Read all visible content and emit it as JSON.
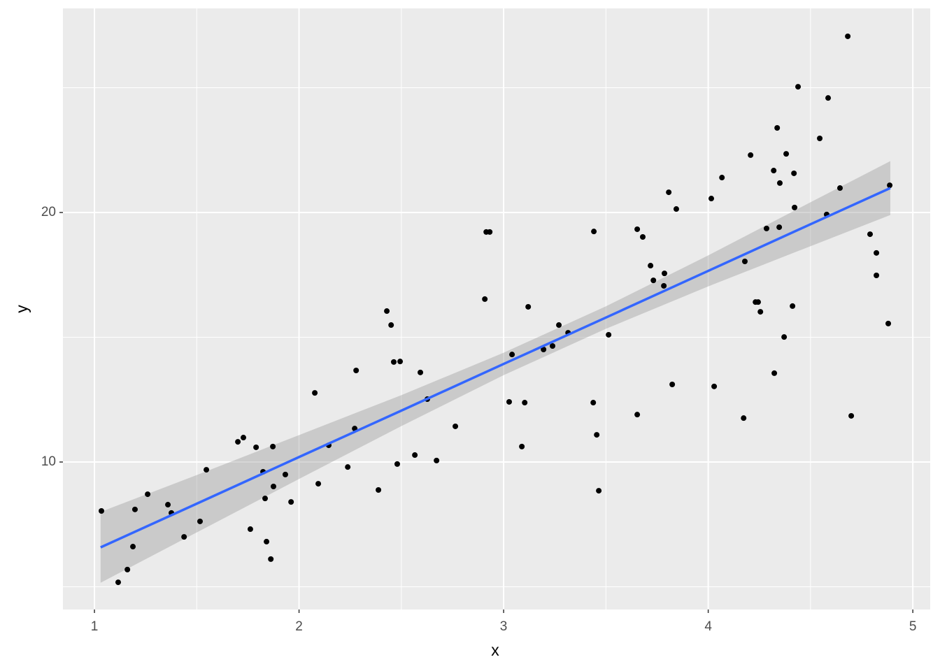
{
  "chart_data": {
    "type": "scatter",
    "x_label": "x",
    "y_label": "y",
    "xlim": [
      0.846,
      5.085
    ],
    "ylim": [
      4.09,
      28.18
    ],
    "xticks": [
      1,
      2,
      3,
      4,
      5
    ],
    "yticks": [
      10,
      20
    ],
    "minor_xticks": [
      1.5,
      2.5,
      3.5,
      4.5
    ],
    "minor_yticks": [
      5,
      15,
      25
    ],
    "grid": true,
    "color": "#000000",
    "x": [
      1.034,
      1.116,
      1.161,
      1.188,
      1.198,
      1.26,
      1.359,
      1.376,
      1.438,
      1.516,
      1.547,
      1.701,
      1.728,
      1.762,
      1.79,
      1.824,
      1.834,
      1.841,
      1.862,
      1.872,
      1.875,
      1.933,
      1.961,
      2.077,
      2.094,
      2.145,
      2.238,
      2.272,
      2.279,
      2.388,
      2.429,
      2.45,
      2.463,
      2.48,
      2.494,
      2.566,
      2.593,
      2.627,
      2.672,
      2.764,
      2.908,
      2.915,
      2.932,
      3.027,
      3.041,
      3.089,
      3.103,
      3.12,
      3.195,
      3.239,
      3.27,
      3.315,
      3.438,
      3.441,
      3.455,
      3.465,
      3.513,
      3.653,
      3.653,
      3.68,
      3.718,
      3.732,
      3.783,
      3.786,
      3.807,
      3.824,
      3.844,
      4.015,
      4.029,
      4.067,
      4.173,
      4.179,
      4.207,
      4.231,
      4.244,
      4.255,
      4.285,
      4.32,
      4.323,
      4.337,
      4.35,
      4.347,
      4.371,
      4.381,
      4.412,
      4.419,
      4.422,
      4.439,
      4.545,
      4.579,
      4.586,
      4.644,
      4.682,
      4.699,
      4.791,
      4.822,
      4.822,
      4.88,
      4.887
    ],
    "values": [
      8.04,
      5.18,
      5.69,
      6.61,
      8.1,
      8.71,
      8.29,
      7.96,
      7.0,
      7.62,
      9.69,
      10.81,
      10.98,
      7.31,
      10.59,
      9.61,
      8.54,
      6.81,
      6.11,
      10.62,
      9.02,
      9.5,
      8.4,
      12.77,
      9.13,
      10.67,
      9.8,
      11.34,
      13.67,
      8.88,
      16.05,
      15.49,
      14.01,
      9.92,
      14.03,
      10.28,
      13.59,
      12.52,
      10.06,
      11.43,
      16.53,
      19.22,
      19.22,
      12.41,
      14.31,
      10.62,
      12.38,
      16.22,
      14.51,
      14.65,
      15.49,
      15.18,
      12.38,
      19.24,
      11.09,
      8.85,
      15.1,
      11.9,
      19.33,
      19.02,
      17.87,
      17.28,
      17.06,
      17.56,
      20.81,
      13.11,
      20.14,
      20.56,
      13.03,
      21.4,
      11.76,
      18.04,
      22.3,
      16.41,
      16.41,
      16.02,
      19.36,
      21.68,
      13.56,
      23.39,
      21.18,
      19.41,
      15.01,
      22.35,
      16.25,
      21.57,
      20.2,
      25.04,
      22.97,
      19.92,
      24.59,
      20.98,
      27.06,
      11.85,
      19.13,
      18.38,
      17.48,
      15.55,
      21.09
    ],
    "fit": {
      "color": "#3366ff",
      "band_color": "#999999",
      "x": [
        1.03,
        1.5,
        2,
        2.5,
        3,
        3.5,
        4,
        4.5,
        4.89
      ],
      "values": [
        6.58,
        8.33,
        10.2,
        12.06,
        13.93,
        15.79,
        17.66,
        19.53,
        20.98
      ],
      "lower": [
        5.16,
        7.18,
        9.32,
        11.44,
        13.48,
        15.34,
        17.04,
        18.65,
        19.9
      ],
      "upper": [
        8.0,
        9.48,
        11.08,
        12.68,
        14.38,
        16.24,
        18.28,
        20.41,
        22.06
      ]
    }
  }
}
